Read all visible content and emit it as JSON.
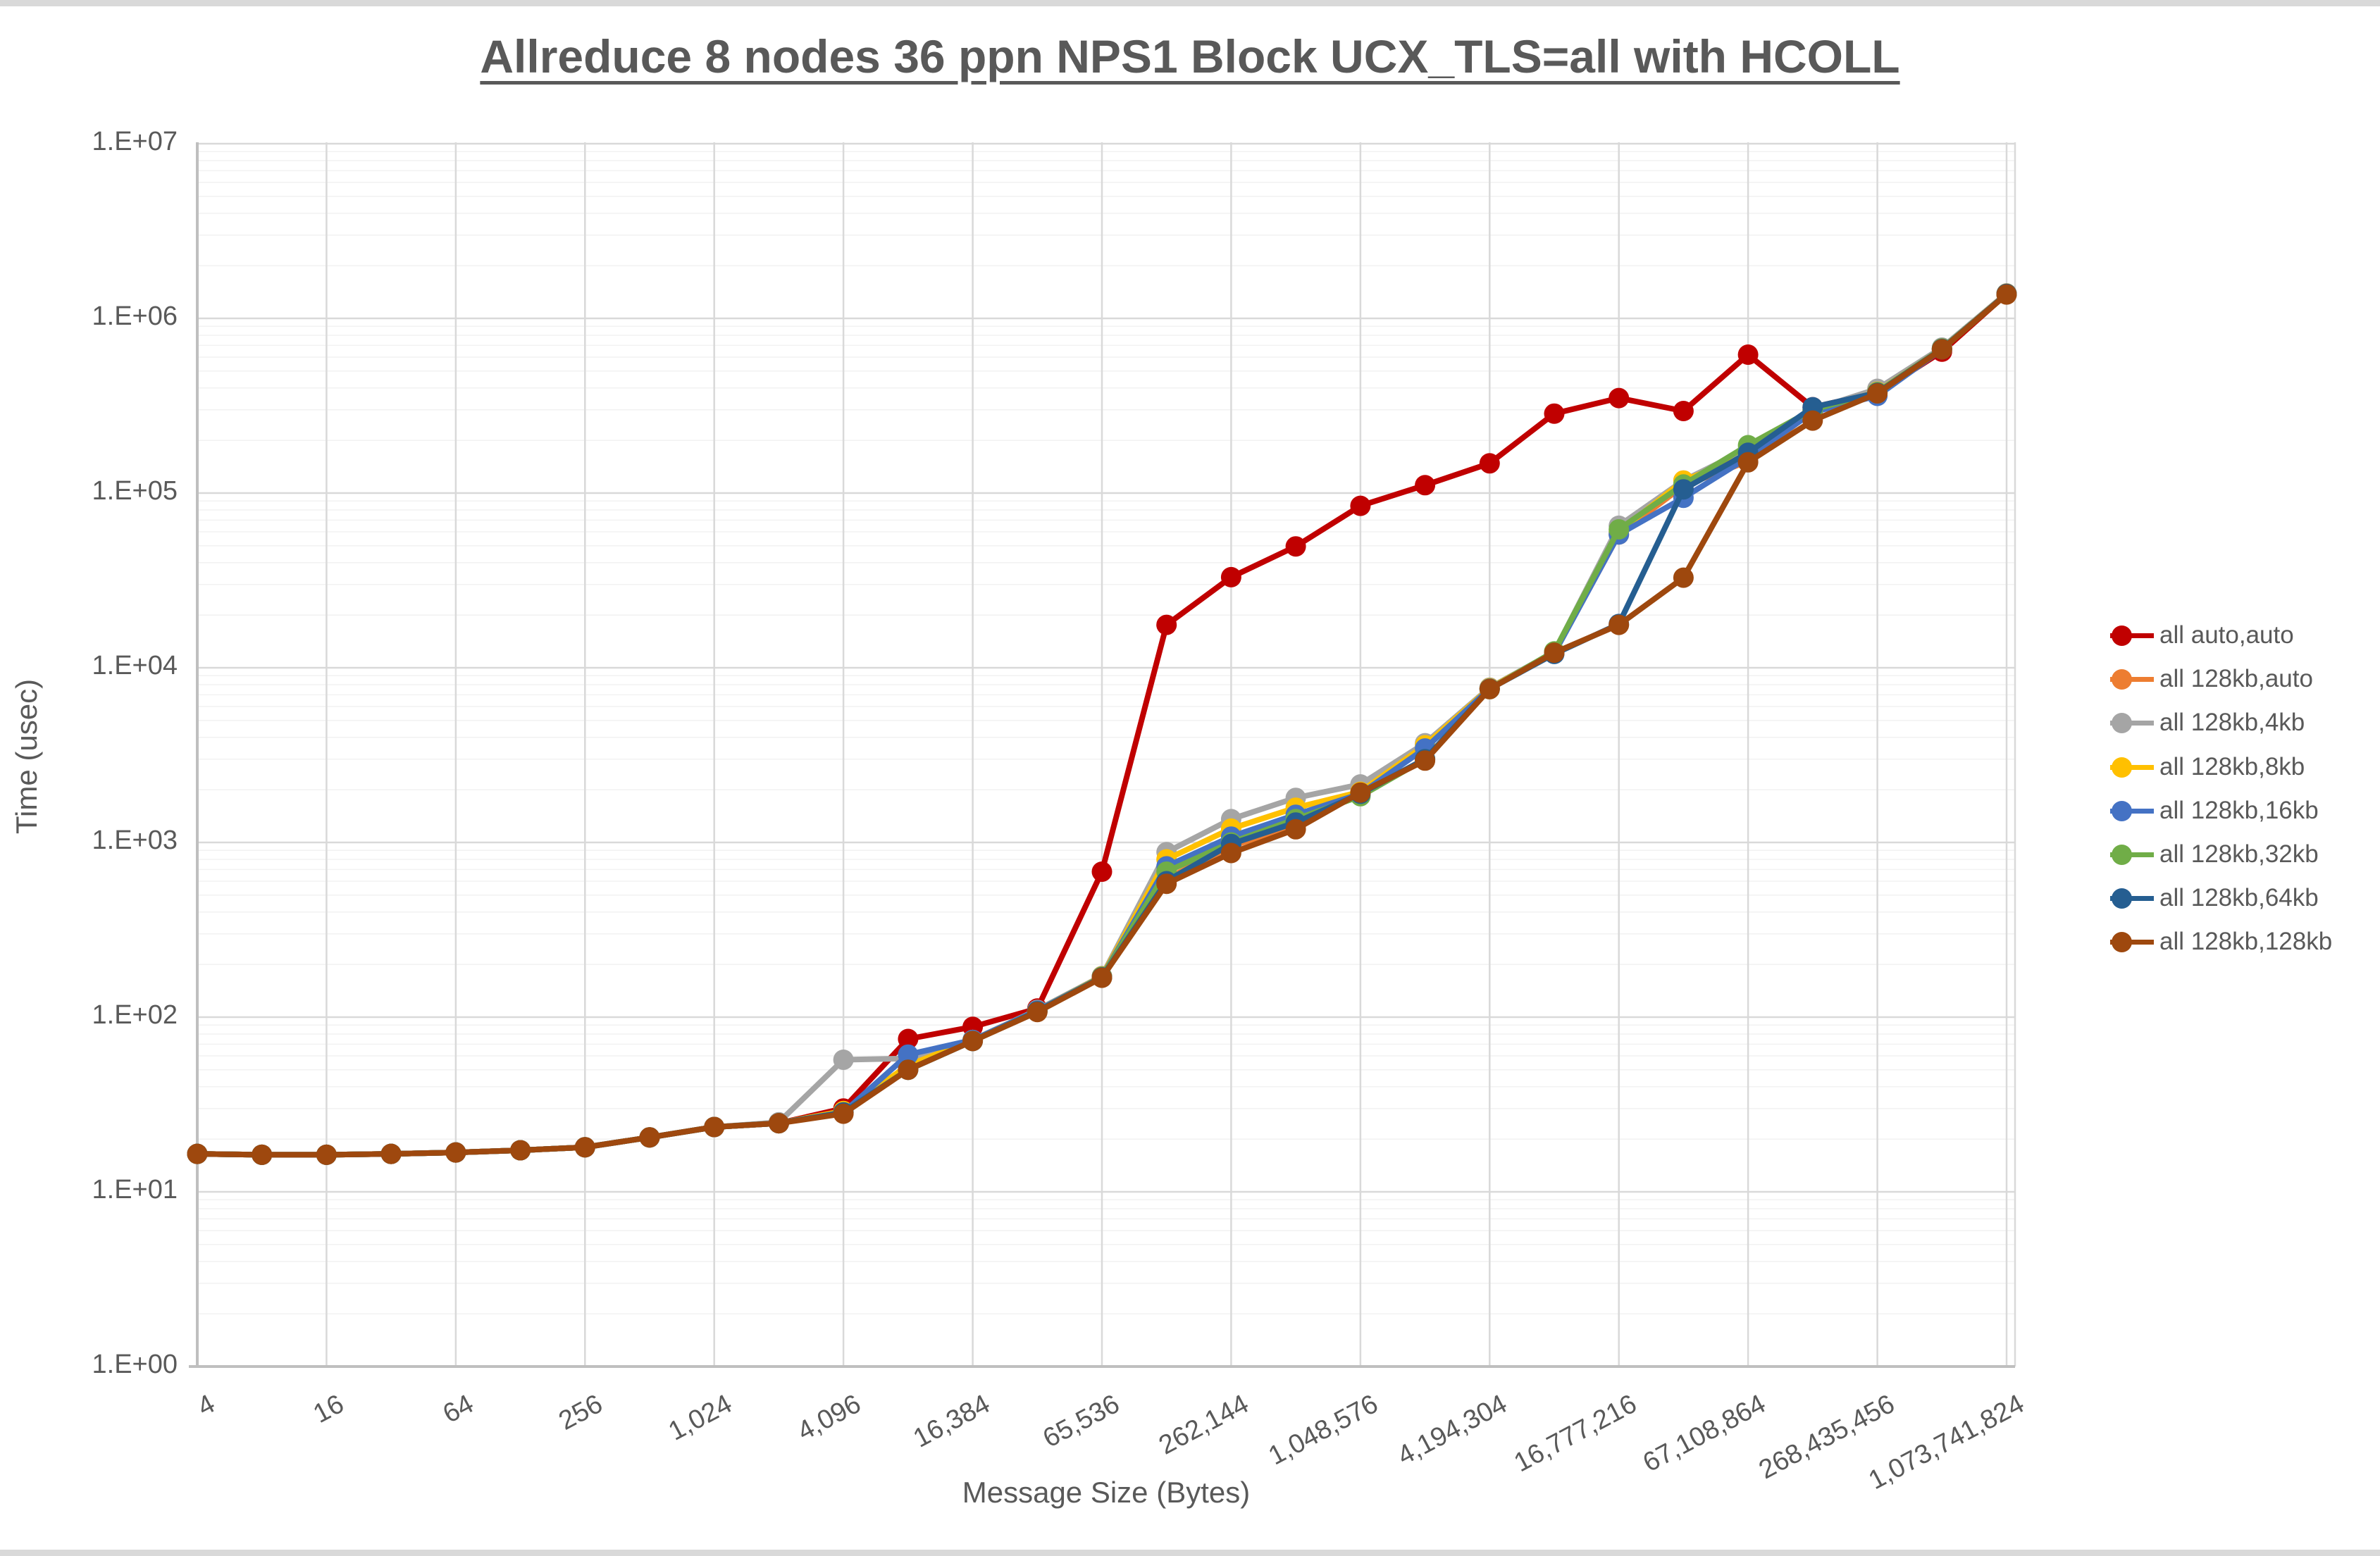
{
  "title": "Allreduce 8 nodes 36 ppn NPS1 Block UCX_TLS=all with HCOLL",
  "colors": {
    "text": "#595959",
    "grid_major": "#d9d9d9",
    "grid_minor": "#f2f2f2",
    "axis_line": "#bfbfbf"
  },
  "chart_data": {
    "type": "line",
    "x_scale": "log2",
    "y_scale": "log10",
    "title": "Allreduce 8 nodes 36 ppn NPS1 Block UCX_TLS=all with HCOLL",
    "xlabel": "Message Size (Bytes)",
    "ylabel": "Time (usec)",
    "ylim": [
      1,
      10000000
    ],
    "y_tick_labels": [
      "1.E+00",
      "1.E+01",
      "1.E+02",
      "1.E+03",
      "1.E+04",
      "1.E+05",
      "1.E+06",
      "1.E+07"
    ],
    "x_ticks": [
      {
        "label": "4",
        "value": 4
      },
      {
        "label": "16",
        "value": 16
      },
      {
        "label": "64",
        "value": 64
      },
      {
        "label": "256",
        "value": 256
      },
      {
        "label": "1,024",
        "value": 1024
      },
      {
        "label": "4,096",
        "value": 4096
      },
      {
        "label": "16,384",
        "value": 16384
      },
      {
        "label": "65,536",
        "value": 65536
      },
      {
        "label": "262,144",
        "value": 262144
      },
      {
        "label": "1,048,576",
        "value": 1048576
      },
      {
        "label": "4,194,304",
        "value": 4194304
      },
      {
        "label": "16,777,216",
        "value": 16777216
      },
      {
        "label": "67,108,864",
        "value": 67108864
      },
      {
        "label": "268,435,456",
        "value": 268435456
      },
      {
        "label": "1,073,741,824",
        "value": 1073741824
      }
    ],
    "x": [
      4,
      8,
      16,
      32,
      64,
      128,
      256,
      512,
      1024,
      2048,
      4096,
      8192,
      16384,
      32768,
      65536,
      131072,
      262144,
      524288,
      1048576,
      2097152,
      4194304,
      8388608,
      16777216,
      33554432,
      67108864,
      134217728,
      268435456,
      536870912,
      1073741824
    ],
    "series": [
      {
        "name": "all auto,auto",
        "color": "#C00000",
        "values": [
          16.5,
          16.3,
          16.3,
          16.5,
          16.8,
          17.3,
          18,
          20.5,
          23.5,
          24.7,
          30,
          75,
          88,
          112,
          680,
          17600,
          33000,
          49500,
          84500,
          111000,
          148000,
          285000,
          350000,
          295000,
          620000,
          310000,
          375000,
          645000,
          1380000
        ]
      },
      {
        "name": "all 128kb,auto",
        "color": "#ED7D31",
        "values": [
          16.5,
          16.3,
          16.3,
          16.5,
          16.8,
          17.3,
          18,
          20.5,
          23.5,
          24.7,
          28.5,
          51,
          73.5,
          108,
          170,
          620,
          950,
          1250,
          1900,
          3000,
          7600,
          12150,
          58000,
          110000,
          152000,
          295000,
          376000,
          669000,
          1378000
        ]
      },
      {
        "name": "all 128kb,4kb",
        "color": "#A5A5A5",
        "values": [
          16.5,
          16.3,
          16.3,
          16.5,
          16.8,
          17.3,
          18,
          20.5,
          23.5,
          25,
          57,
          58,
          74,
          110,
          172,
          880,
          1360,
          1800,
          2150,
          3700,
          7700,
          12300,
          65000,
          118000,
          180000,
          300000,
          395000,
          680000,
          1390000
        ]
      },
      {
        "name": "all 128kb,8kb",
        "color": "#FFC000",
        "values": [
          16.5,
          16.3,
          16.3,
          16.5,
          16.8,
          17.3,
          18,
          20.5,
          23.5,
          24.7,
          29,
          53,
          74,
          109,
          171,
          800,
          1200,
          1580,
          1950,
          3600,
          7650,
          12200,
          60000,
          118000,
          165000,
          295000,
          380000,
          670000,
          1385000
        ]
      },
      {
        "name": "all 128kb,16kb",
        "color": "#4472C4",
        "values": [
          16.5,
          16.3,
          16.3,
          16.5,
          16.8,
          17.3,
          18,
          20.5,
          23.5,
          24.7,
          28.5,
          61,
          74,
          109,
          170,
          730,
          1080,
          1440,
          1900,
          3450,
          7600,
          12100,
          58000,
          94000,
          160000,
          290000,
          360000,
          665000,
          1380000
        ]
      },
      {
        "name": "all 128kb,32kb",
        "color": "#70AD47",
        "values": [
          16.5,
          16.3,
          16.3,
          16.5,
          16.8,
          17.3,
          18,
          20.5,
          23.5,
          24.7,
          28.5,
          50,
          73,
          108,
          170,
          680,
          1000,
          1360,
          1840,
          3000,
          7550,
          12400,
          62000,
          112000,
          188000,
          300000,
          378000,
          672000,
          1375000
        ]
      },
      {
        "name": "all 128kb,64kb",
        "color": "#255E91",
        "values": [
          16.5,
          16.3,
          16.3,
          16.5,
          16.8,
          17.3,
          18,
          20.5,
          23.5,
          24.7,
          28.5,
          50,
          73,
          108,
          169,
          600,
          980,
          1300,
          1900,
          3000,
          7570,
          12000,
          17800,
          105000,
          170000,
          310000,
          375000,
          668000,
          1380000
        ]
      },
      {
        "name": "all 128kb,128kb",
        "color": "#9E480E",
        "values": [
          16.5,
          16.3,
          16.3,
          16.5,
          16.8,
          17.3,
          18,
          20.5,
          23.5,
          24.7,
          28,
          50,
          73,
          107,
          168,
          580,
          870,
          1190,
          1930,
          2940,
          7550,
          12200,
          17600,
          32800,
          150000,
          260000,
          372000,
          665000,
          1370000
        ]
      }
    ],
    "legend_position": "right",
    "grid": true
  }
}
